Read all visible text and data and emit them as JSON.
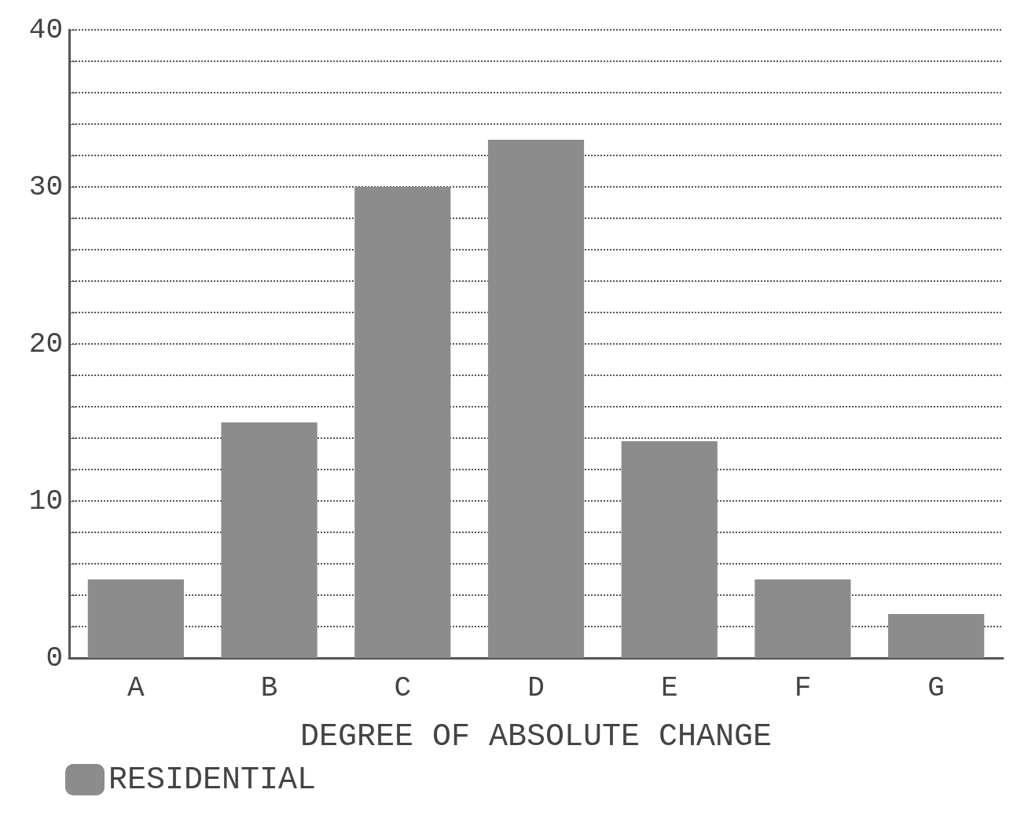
{
  "chart_data": {
    "type": "bar",
    "xlabel": "DEGREE OF ABSOLUTE CHANGE",
    "categories": [
      "A",
      "B",
      "C",
      "D",
      "E",
      "F",
      "G"
    ],
    "series": [
      {
        "name": "RESIDENTIAL",
        "color": "#8c8c8c",
        "values": [
          5,
          15,
          30,
          33,
          13.8,
          5,
          2.8
        ]
      }
    ],
    "ylim": [
      0,
      40
    ],
    "yticks": [
      0,
      {
        "value": 2,
        "label": null
      },
      {
        "value": 4,
        "label": null
      },
      {
        "value": 6,
        "label": null
      },
      {
        "value": 8,
        "label": null
      },
      10,
      {
        "value": 12,
        "label": null
      },
      {
        "value": 14,
        "label": null
      },
      {
        "value": 16,
        "label": null
      },
      {
        "value": 18,
        "label": null
      },
      20,
      {
        "value": 22,
        "label": null
      },
      {
        "value": 24,
        "label": null
      },
      {
        "value": 26,
        "label": null
      },
      {
        "value": 28,
        "label": null
      },
      30,
      {
        "value": 32,
        "label": null
      },
      {
        "value": 34,
        "label": null
      },
      {
        "value": 36,
        "label": null
      },
      {
        "value": 38,
        "label": null
      },
      40
    ],
    "grid": "y",
    "legend": "bottom left"
  }
}
